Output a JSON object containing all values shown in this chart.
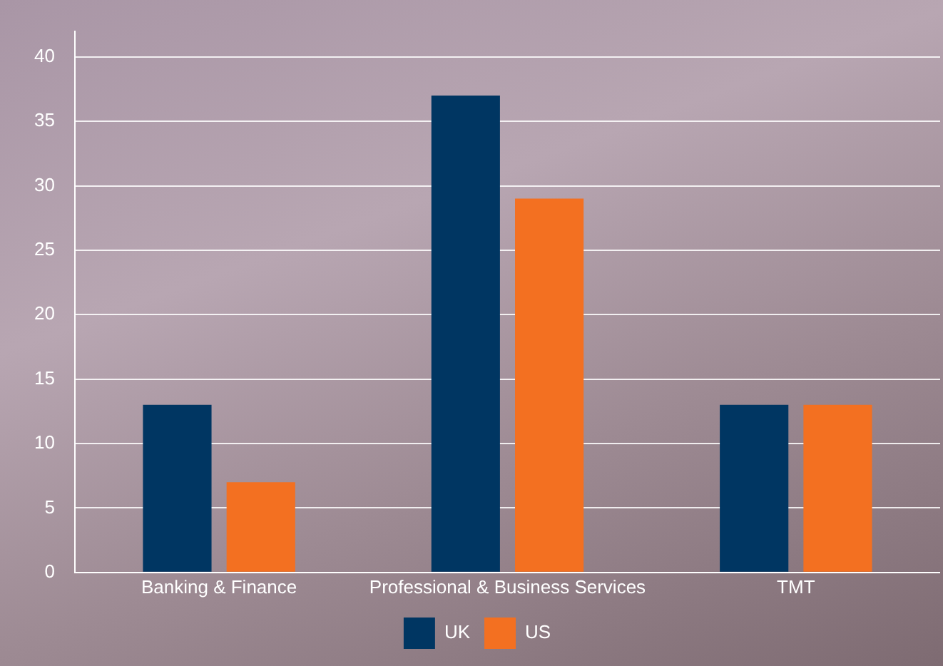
{
  "chart_data": {
    "type": "bar",
    "categories": [
      "Banking & Finance",
      "Professional & Business Services",
      "TMT"
    ],
    "series": [
      {
        "name": "UK",
        "color": "#003662",
        "values": [
          13,
          37,
          13
        ]
      },
      {
        "name": "US",
        "color": "#f37021",
        "values": [
          7,
          29,
          13
        ]
      }
    ],
    "ylim": [
      0,
      42
    ],
    "yticks": [
      0,
      5,
      10,
      15,
      20,
      25,
      30,
      35,
      40
    ],
    "grid": "y",
    "legend": "bottom"
  }
}
